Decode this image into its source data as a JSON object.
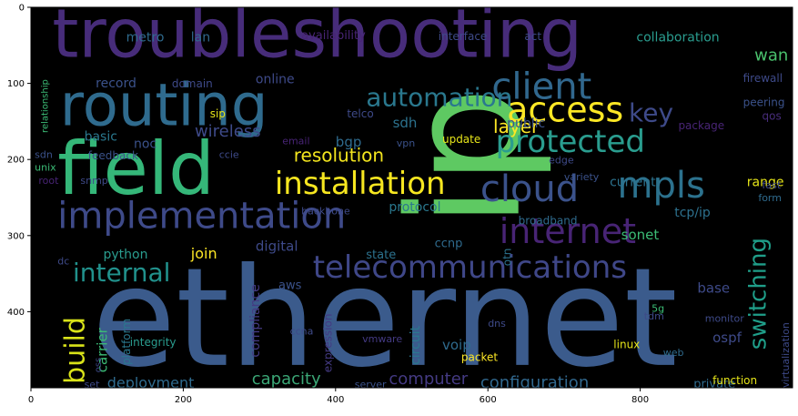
{
  "axes": {
    "x_range": [
      0,
      1000
    ],
    "y_range": [
      500,
      0
    ],
    "x_ticks": [
      0,
      200,
      400,
      600,
      800
    ],
    "y_ticks": [
      0,
      100,
      200,
      300,
      400
    ],
    "background_color": "#000000"
  },
  "words": [
    {
      "text": "troubleshooting",
      "x": 28,
      "y": 65,
      "color": "#472c7a",
      "rotate": 0
    },
    {
      "text": "ethernet",
      "x": 80,
      "y": 470,
      "color": "#3b5b8c",
      "rotate": 0
    },
    {
      "text": "routing",
      "x": 38,
      "y": 155,
      "color": "#2f6b8e",
      "rotate": 0
    },
    {
      "text": "field",
      "x": 35,
      "y": 245,
      "color": "#35b779",
      "rotate": 0
    },
    {
      "text": "ip",
      "x": 640,
      "y": 290,
      "color": "#5ec962",
      "rotate": -90
    },
    {
      "text": "implementation",
      "x": 35,
      "y": 290,
      "color": "#3e4a89",
      "rotate": 0
    },
    {
      "text": "access",
      "x": 625,
      "y": 150,
      "color": "#fde725",
      "rotate": 0
    },
    {
      "text": "client",
      "x": 605,
      "y": 120,
      "color": "#31688e",
      "rotate": 0
    },
    {
      "text": "protected",
      "x": 610,
      "y": 190,
      "color": "#2a9d8f",
      "rotate": 0
    },
    {
      "text": "installation",
      "x": 320,
      "y": 245,
      "color": "#f6e620",
      "rotate": 0
    },
    {
      "text": "cloud",
      "x": 590,
      "y": 255,
      "color": "#3b528b",
      "rotate": 0
    },
    {
      "text": "mpls",
      "x": 770,
      "y": 250,
      "color": "#2c728e",
      "rotate": 0
    },
    {
      "text": "internet",
      "x": 615,
      "y": 310,
      "color": "#482475",
      "rotate": 0
    },
    {
      "text": "telecommunications",
      "x": 370,
      "y": 355,
      "color": "#3f4788",
      "rotate": 0
    },
    {
      "text": "automation",
      "x": 440,
      "y": 130,
      "color": "#2a788e",
      "rotate": 0
    },
    {
      "text": "key",
      "x": 785,
      "y": 150,
      "color": "#3e4a89",
      "rotate": 0
    },
    {
      "text": "internal",
      "x": 55,
      "y": 360,
      "color": "#21918c",
      "rotate": 0
    },
    {
      "text": "build",
      "x": 70,
      "y": 495,
      "color": "#d8e219",
      "rotate": -90
    },
    {
      "text": "switching",
      "x": 965,
      "y": 450,
      "color": "#1f9e89",
      "rotate": -90
    },
    {
      "text": "resolution",
      "x": 345,
      "y": 203,
      "color": "#f3e51e",
      "rotate": 0
    },
    {
      "text": "layer",
      "x": 607,
      "y": 165,
      "color": "#fde725",
      "rotate": 0
    },
    {
      "text": "wireless",
      "x": 215,
      "y": 170,
      "color": "#3e4a89",
      "rotate": 0
    },
    {
      "text": "configuration",
      "x": 590,
      "y": 500,
      "color": "#31688e",
      "rotate": 0
    },
    {
      "text": "capacity",
      "x": 290,
      "y": 495,
      "color": "#3ba776",
      "rotate": 0
    },
    {
      "text": "computer",
      "x": 470,
      "y": 495,
      "color": "#443a83",
      "rotate": 0
    },
    {
      "text": "deployment",
      "x": 100,
      "y": 500,
      "color": "#2f6b8e",
      "rotate": 0
    },
    {
      "text": "digital",
      "x": 295,
      "y": 320,
      "color": "#3e4a89",
      "rotate": 0
    },
    {
      "text": "join",
      "x": 210,
      "y": 330,
      "color": "#fde725",
      "rotate": 0
    },
    {
      "text": "sonet",
      "x": 775,
      "y": 305,
      "color": "#3bbb75",
      "rotate": 0
    },
    {
      "text": "tcp/ip",
      "x": 845,
      "y": 275,
      "color": "#2d718e",
      "rotate": 0
    },
    {
      "text": "current",
      "x": 760,
      "y": 235,
      "color": "#2c728e",
      "rotate": 0
    },
    {
      "text": "range",
      "x": 940,
      "y": 235,
      "color": "#e5e419",
      "rotate": 0
    },
    {
      "text": "collaboration",
      "x": 795,
      "y": 45,
      "color": "#2a9d8f",
      "rotate": 0
    },
    {
      "text": "wan",
      "x": 950,
      "y": 70,
      "color": "#4ac16d",
      "rotate": 0
    },
    {
      "text": "firewall",
      "x": 935,
      "y": 98,
      "color": "#3e4a89",
      "rotate": 0
    },
    {
      "text": "peering",
      "x": 935,
      "y": 130,
      "color": "#3b528b",
      "rotate": 0
    },
    {
      "text": "qos",
      "x": 960,
      "y": 148,
      "color": "#472c7a",
      "rotate": 0
    },
    {
      "text": "package",
      "x": 850,
      "y": 160,
      "color": "#482475",
      "rotate": 0
    },
    {
      "text": "metro",
      "x": 125,
      "y": 45,
      "color": "#2f6b8e",
      "rotate": 0
    },
    {
      "text": "lan",
      "x": 210,
      "y": 45,
      "color": "#31688e",
      "rotate": 0
    },
    {
      "text": "availability",
      "x": 355,
      "y": 42,
      "color": "#482475",
      "rotate": 0
    },
    {
      "text": "interface",
      "x": 535,
      "y": 43,
      "color": "#3e4a89",
      "rotate": 0
    },
    {
      "text": "act",
      "x": 648,
      "y": 43,
      "color": "#3e4a89",
      "rotate": 0
    },
    {
      "text": "record",
      "x": 85,
      "y": 105,
      "color": "#3b528b",
      "rotate": 0
    },
    {
      "text": "domain",
      "x": 185,
      "y": 105,
      "color": "#3e4a89",
      "rotate": 0
    },
    {
      "text": "online",
      "x": 295,
      "y": 100,
      "color": "#3e4a89",
      "rotate": 0
    },
    {
      "text": "sip",
      "x": 235,
      "y": 145,
      "color": "#e5e419",
      "rotate": 0
    },
    {
      "text": "telco",
      "x": 415,
      "y": 145,
      "color": "#3e4a89",
      "rotate": 0
    },
    {
      "text": "sdh",
      "x": 475,
      "y": 158,
      "color": "#2c728e",
      "rotate": 0
    },
    {
      "text": "public",
      "x": 625,
      "y": 158,
      "color": "#3b528b",
      "rotate": 0
    },
    {
      "text": "basic",
      "x": 70,
      "y": 175,
      "color": "#2a788e",
      "rotate": 0
    },
    {
      "text": "noc",
      "x": 135,
      "y": 185,
      "color": "#3b528b",
      "rotate": 0
    },
    {
      "text": "bgp",
      "x": 400,
      "y": 183,
      "color": "#2f6b8e",
      "rotate": 0
    },
    {
      "text": "email",
      "x": 330,
      "y": 180,
      "color": "#482475",
      "rotate": 0
    },
    {
      "text": "vpn",
      "x": 480,
      "y": 183,
      "color": "#3b528b",
      "rotate": 0
    },
    {
      "text": "update",
      "x": 540,
      "y": 178,
      "color": "#e5e419",
      "rotate": 0
    },
    {
      "text": "feedback",
      "x": 75,
      "y": 200,
      "color": "#3b528b",
      "rotate": 0
    },
    {
      "text": "ccie",
      "x": 247,
      "y": 198,
      "color": "#3e4a89",
      "rotate": 0
    },
    {
      "text": "sdn",
      "x": 5,
      "y": 198,
      "color": "#3b528b",
      "rotate": 0
    },
    {
      "text": "unix",
      "x": 5,
      "y": 215,
      "color": "#3bbb75",
      "rotate": 0
    },
    {
      "text": "root",
      "x": 10,
      "y": 232,
      "color": "#482475",
      "rotate": 0
    },
    {
      "text": "snmp",
      "x": 65,
      "y": 232,
      "color": "#3e4a89",
      "rotate": 0
    },
    {
      "text": "edge",
      "x": 680,
      "y": 205,
      "color": "#3e4a89",
      "rotate": 0
    },
    {
      "text": "variety",
      "x": 700,
      "y": 227,
      "color": "#3b528b",
      "rotate": 0
    },
    {
      "text": "fast",
      "x": 960,
      "y": 238,
      "color": "#3e4a89",
      "rotate": 0
    },
    {
      "text": "form",
      "x": 955,
      "y": 255,
      "color": "#2f6b8e",
      "rotate": 0
    },
    {
      "text": "backbone",
      "x": 355,
      "y": 272,
      "color": "#3e4a89",
      "rotate": 0
    },
    {
      "text": "protocol",
      "x": 470,
      "y": 268,
      "color": "#2a788e",
      "rotate": 0
    },
    {
      "text": "broadband",
      "x": 640,
      "y": 285,
      "color": "#2f6b8e",
      "rotate": 0
    },
    {
      "text": "otn",
      "x": 630,
      "y": 340,
      "color": "#2c728e",
      "rotate": -90
    },
    {
      "text": "ccnp",
      "x": 530,
      "y": 315,
      "color": "#2f6b8e",
      "rotate": 0
    },
    {
      "text": "state",
      "x": 440,
      "y": 330,
      "color": "#2c728e",
      "rotate": 0
    },
    {
      "text": "python",
      "x": 95,
      "y": 330,
      "color": "#2a9d8f",
      "rotate": 0
    },
    {
      "text": "dc",
      "x": 35,
      "y": 338,
      "color": "#3e4a89",
      "rotate": 0
    },
    {
      "text": "aws",
      "x": 325,
      "y": 370,
      "color": "#3b528b",
      "rotate": 0
    },
    {
      "text": "base",
      "x": 875,
      "y": 375,
      "color": "#3e4a89",
      "rotate": 0
    },
    {
      "text": "5g",
      "x": 815,
      "y": 400,
      "color": "#3bbb75",
      "rotate": 0
    },
    {
      "text": "tdm",
      "x": 805,
      "y": 410,
      "color": "#3e4a89",
      "rotate": 0
    },
    {
      "text": "monitor",
      "x": 885,
      "y": 413,
      "color": "#3e4a89",
      "rotate": 0
    },
    {
      "text": "ospf",
      "x": 895,
      "y": 440,
      "color": "#3e4a89",
      "rotate": 0
    },
    {
      "text": "virtualization",
      "x": 995,
      "y": 500,
      "color": "#3e4a89",
      "rotate": -90
    },
    {
      "text": "carrier",
      "x": 100,
      "y": 480,
      "color": "#3bbb75",
      "rotate": -90
    },
    {
      "text": "platform",
      "x": 130,
      "y": 470,
      "color": "#2a788e",
      "rotate": -90
    },
    {
      "text": "oss",
      "x": 92,
      "y": 480,
      "color": "#3e4a89",
      "rotate": -90
    },
    {
      "text": "compliance",
      "x": 300,
      "y": 460,
      "color": "#443a83",
      "rotate": -90
    },
    {
      "text": "ccna",
      "x": 340,
      "y": 430,
      "color": "#3e4a89",
      "rotate": 0
    },
    {
      "text": "expression",
      "x": 395,
      "y": 480,
      "color": "#443a83",
      "rotate": -90
    },
    {
      "text": "circuit",
      "x": 510,
      "y": 470,
      "color": "#2a788e",
      "rotate": -90
    },
    {
      "text": "voip",
      "x": 540,
      "y": 450,
      "color": "#2f6b8e",
      "rotate": 0
    },
    {
      "text": "dns",
      "x": 600,
      "y": 420,
      "color": "#3e4a89",
      "rotate": 0
    },
    {
      "text": "vmware",
      "x": 435,
      "y": 440,
      "color": "#443a83",
      "rotate": 0
    },
    {
      "text": "integrity",
      "x": 130,
      "y": 445,
      "color": "#2a9d8f",
      "rotate": 0
    },
    {
      "text": "linux",
      "x": 765,
      "y": 448,
      "color": "#e5e419",
      "rotate": 0
    },
    {
      "text": "web",
      "x": 830,
      "y": 458,
      "color": "#2f6b8e",
      "rotate": 0
    },
    {
      "text": "packet",
      "x": 565,
      "y": 465,
      "color": "#fde725",
      "rotate": 0
    },
    {
      "text": "set",
      "x": 70,
      "y": 500,
      "color": "#3e4a89",
      "rotate": 0
    },
    {
      "text": "server",
      "x": 425,
      "y": 500,
      "color": "#3b528b",
      "rotate": 0
    },
    {
      "text": "private",
      "x": 870,
      "y": 500,
      "color": "#2f6b8e",
      "rotate": 0
    },
    {
      "text": "function",
      "x": 895,
      "y": 495,
      "color": "#e5e419",
      "rotate": 0
    },
    {
      "text": "relationship",
      "x": 22,
      "y": 165,
      "color": "#3bbb75",
      "rotate": -90
    }
  ]
}
